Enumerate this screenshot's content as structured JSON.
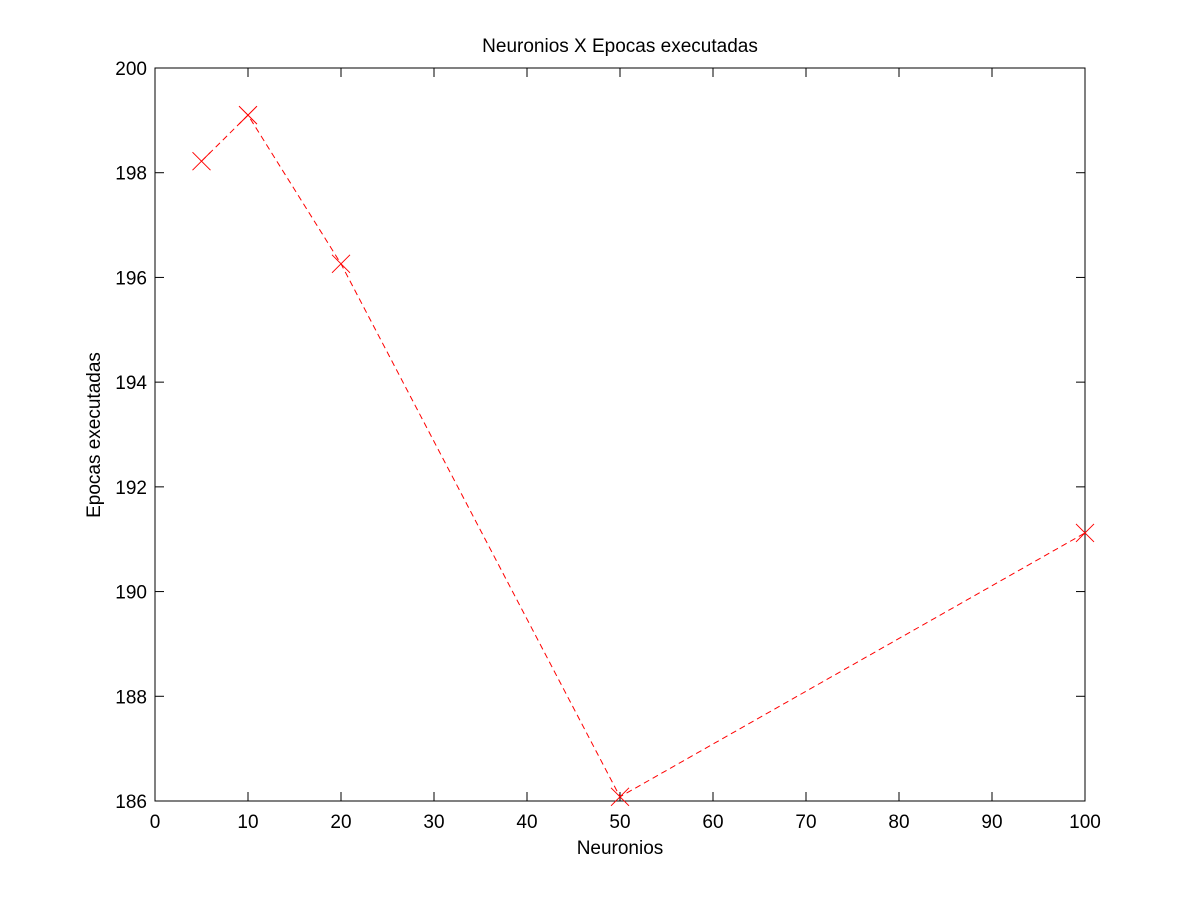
{
  "chart_data": {
    "type": "line",
    "title": "Neuronios X Epocas executadas",
    "xlabel": "Neuronios",
    "ylabel": "Epocas executadas",
    "xlim": [
      0,
      100
    ],
    "ylim": [
      186,
      200
    ],
    "x_ticks": [
      0,
      10,
      20,
      30,
      40,
      50,
      60,
      70,
      80,
      90,
      100
    ],
    "y_ticks": [
      186,
      188,
      190,
      192,
      194,
      196,
      198,
      200
    ],
    "grid": false,
    "legend": "none",
    "series": [
      {
        "x": [
          5,
          10,
          20,
          50,
          100
        ],
        "y": [
          198.22,
          199.1,
          196.26,
          186.08,
          191.12
        ],
        "color": "#ff0000",
        "line_style": "dashed",
        "marker": "x"
      }
    ]
  }
}
